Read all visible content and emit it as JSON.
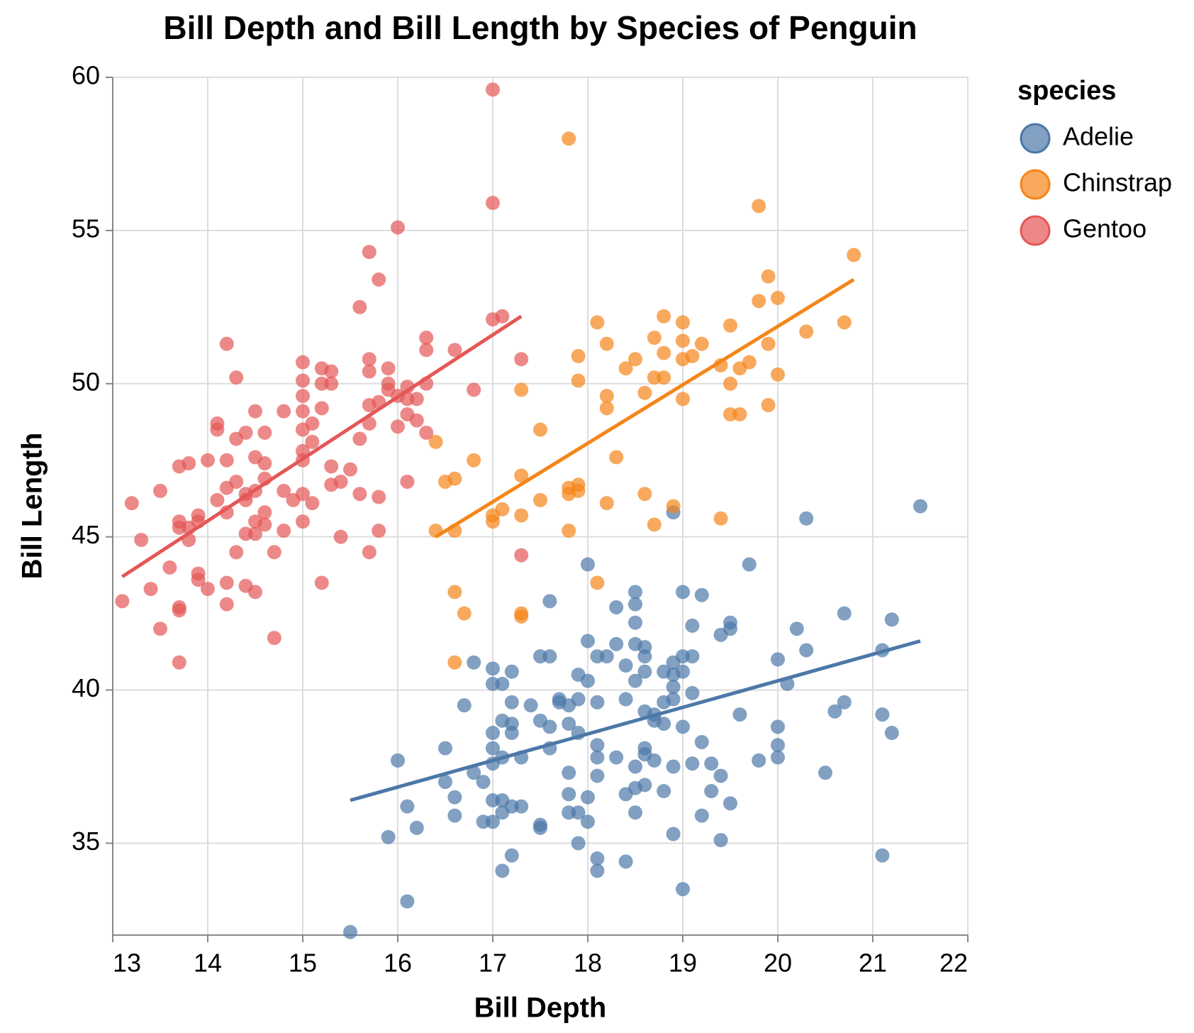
{
  "chart_data": {
    "type": "scatter",
    "title": "Bill Depth and Bill Length by Species of Penguin",
    "x_label": "Bill Depth",
    "y_label": "Bill Length",
    "legend_title": "species",
    "legend_position": "right",
    "grid": true,
    "xlim": [
      13,
      22
    ],
    "ylim": [
      32,
      60
    ],
    "xticks": [
      13,
      14,
      15,
      16,
      17,
      18,
      19,
      20,
      21,
      22
    ],
    "yticks": [
      35,
      40,
      45,
      50,
      55,
      60
    ],
    "series": [
      {
        "name": "Adelie",
        "color": "#4c78a8",
        "x": [
          15.5,
          15.9,
          16.0,
          16.1,
          16.1,
          16.2,
          16.5,
          16.5,
          16.6,
          16.6,
          16.7,
          16.8,
          16.8,
          16.9,
          16.9,
          17.0,
          17.0,
          17.0,
          17.0,
          17.0,
          17.0,
          17.0,
          17.1,
          17.1,
          17.1,
          17.1,
          17.1,
          17.1,
          17.2,
          17.2,
          17.2,
          17.2,
          17.2,
          17.2,
          17.3,
          17.3,
          17.4,
          17.5,
          17.5,
          17.5,
          17.5,
          17.6,
          17.6,
          17.6,
          17.6,
          17.7,
          17.7,
          17.8,
          17.8,
          17.8,
          17.8,
          17.8,
          17.9,
          17.9,
          17.9,
          17.9,
          17.9,
          18.0,
          18.0,
          18.0,
          18.0,
          18.0,
          18.1,
          18.1,
          18.1,
          18.1,
          18.1,
          18.1,
          18.1,
          18.2,
          18.3,
          18.3,
          18.3,
          18.4,
          18.4,
          18.4,
          18.4,
          18.5,
          18.5,
          18.5,
          18.5,
          18.5,
          18.5,
          18.5,
          18.5,
          18.6,
          18.6,
          18.6,
          18.6,
          18.6,
          18.6,
          18.6,
          18.7,
          18.7,
          18.7,
          18.8,
          18.8,
          18.8,
          18.8,
          18.9,
          18.9,
          18.9,
          18.9,
          18.9,
          18.9,
          18.9,
          19.0,
          19.0,
          19.0,
          19.0,
          19.0,
          19.1,
          19.1,
          19.1,
          19.1,
          19.2,
          19.2,
          19.2,
          19.3,
          19.3,
          19.4,
          19.4,
          19.4,
          19.5,
          19.5,
          19.5,
          19.6,
          19.7,
          19.8,
          20.0,
          20.0,
          20.0,
          20.0,
          20.1,
          20.2,
          20.3,
          20.3,
          20.5,
          20.6,
          20.7,
          20.7,
          21.1,
          21.1,
          21.1,
          21.2,
          21.2,
          21.5
        ],
        "y": [
          32.1,
          35.2,
          37.7,
          36.2,
          33.1,
          35.5,
          38.1,
          37.0,
          36.5,
          35.9,
          39.5,
          40.9,
          37.3,
          37.0,
          35.7,
          40.7,
          40.2,
          38.6,
          38.1,
          37.6,
          36.4,
          35.7,
          40.2,
          39.0,
          37.8,
          36.4,
          36.0,
          34.1,
          40.6,
          39.6,
          38.9,
          38.6,
          36.2,
          34.6,
          37.8,
          36.2,
          39.5,
          41.1,
          39.0,
          35.6,
          35.5,
          42.9,
          41.1,
          38.8,
          38.1,
          39.7,
          39.6,
          39.5,
          38.9,
          37.3,
          36.6,
          36.0,
          40.5,
          39.7,
          38.6,
          36.0,
          35.0,
          44.1,
          41.6,
          40.3,
          36.5,
          35.7,
          41.1,
          39.6,
          38.2,
          37.8,
          37.2,
          34.5,
          34.1,
          41.1,
          42.7,
          41.5,
          37.8,
          40.8,
          39.7,
          36.6,
          34.4,
          43.2,
          42.8,
          42.2,
          41.5,
          40.3,
          37.5,
          36.8,
          36.0,
          41.4,
          41.1,
          40.6,
          39.3,
          38.1,
          37.9,
          36.9,
          39.2,
          39.0,
          37.7,
          40.6,
          39.6,
          38.9,
          36.7,
          45.8,
          40.9,
          40.5,
          40.1,
          39.7,
          37.5,
          35.3,
          43.2,
          41.1,
          40.6,
          38.8,
          33.5,
          42.1,
          41.1,
          39.9,
          37.6,
          43.1,
          38.3,
          35.9,
          37.6,
          36.7,
          41.8,
          37.2,
          35.1,
          42.2,
          42.0,
          36.3,
          39.2,
          44.1,
          37.7,
          41.0,
          38.8,
          38.2,
          37.8,
          40.2,
          42.0,
          45.6,
          41.3,
          37.3,
          39.3,
          42.5,
          39.6,
          41.3,
          39.2,
          34.6,
          42.3,
          38.6,
          46.0
        ],
        "trend": {
          "x": [
            15.5,
            21.5
          ],
          "y": [
            36.4,
            41.6
          ]
        }
      },
      {
        "name": "Chinstrap",
        "color": "#f58518",
        "x": [
          16.4,
          16.4,
          16.5,
          16.6,
          16.6,
          16.6,
          16.6,
          16.7,
          16.8,
          17.0,
          17.0,
          17.1,
          17.3,
          17.3,
          17.3,
          17.3,
          17.3,
          17.5,
          17.5,
          17.8,
          17.8,
          17.8,
          17.8,
          17.9,
          17.9,
          17.9,
          17.9,
          18.1,
          18.1,
          18.2,
          18.2,
          18.2,
          18.2,
          18.3,
          18.4,
          18.5,
          18.6,
          18.6,
          18.7,
          18.7,
          18.7,
          18.8,
          18.8,
          18.8,
          18.9,
          19.0,
          19.0,
          19.0,
          19.0,
          19.1,
          19.2,
          19.4,
          19.4,
          19.5,
          19.5,
          19.5,
          19.6,
          19.6,
          19.7,
          19.8,
          19.8,
          19.9,
          19.9,
          19.9,
          20.0,
          20.0,
          20.3,
          20.7,
          20.8
        ],
        "y": [
          48.1,
          45.2,
          46.8,
          46.9,
          45.2,
          43.2,
          40.9,
          42.5,
          47.5,
          45.7,
          45.5,
          45.9,
          49.8,
          47.0,
          45.7,
          42.5,
          42.4,
          48.5,
          46.2,
          58.0,
          46.6,
          46.4,
          45.2,
          50.9,
          50.1,
          46.7,
          46.5,
          52.0,
          43.5,
          51.3,
          49.6,
          49.2,
          46.1,
          47.6,
          50.5,
          50.8,
          49.7,
          46.4,
          51.5,
          50.2,
          45.4,
          52.2,
          51.0,
          50.2,
          46.0,
          52.0,
          51.4,
          50.8,
          49.5,
          50.9,
          51.3,
          45.6,
          50.6,
          51.9,
          50.0,
          49.0,
          49.0,
          50.5,
          50.7,
          55.8,
          52.7,
          53.5,
          51.3,
          49.3,
          52.8,
          50.3,
          51.7,
          52.0,
          54.2
        ],
        "trend": {
          "x": [
            16.4,
            20.8
          ],
          "y": [
            45.0,
            53.4
          ]
        }
      },
      {
        "name": "Gentoo",
        "color": "#e45756",
        "x": [
          13.1,
          13.2,
          13.3,
          13.4,
          13.5,
          13.5,
          13.6,
          13.7,
          13.7,
          13.7,
          13.7,
          13.7,
          13.7,
          13.8,
          13.8,
          13.8,
          13.9,
          13.9,
          13.9,
          13.9,
          14.0,
          14.0,
          14.1,
          14.1,
          14.1,
          14.2,
          14.2,
          14.2,
          14.2,
          14.2,
          14.2,
          14.3,
          14.3,
          14.3,
          14.3,
          14.4,
          14.4,
          14.4,
          14.4,
          14.4,
          14.5,
          14.5,
          14.5,
          14.5,
          14.5,
          14.5,
          14.6,
          14.6,
          14.6,
          14.6,
          14.6,
          14.7,
          14.7,
          14.8,
          14.8,
          14.8,
          14.9,
          15.0,
          15.0,
          15.0,
          15.0,
          15.0,
          15.0,
          15.0,
          15.0,
          15.0,
          15.1,
          15.1,
          15.1,
          15.2,
          15.2,
          15.2,
          15.2,
          15.3,
          15.3,
          15.3,
          15.3,
          15.4,
          15.4,
          15.5,
          15.6,
          15.6,
          15.6,
          15.7,
          15.7,
          15.7,
          15.7,
          15.7,
          15.7,
          15.8,
          15.8,
          15.8,
          15.8,
          15.9,
          15.9,
          15.9,
          16.0,
          16.0,
          16.0,
          16.1,
          16.1,
          16.1,
          16.1,
          16.2,
          16.2,
          16.3,
          16.3,
          16.3,
          16.3,
          16.6,
          16.8,
          17.0,
          17.0,
          17.0,
          17.1,
          17.3,
          17.3
        ],
        "y": [
          42.9,
          46.1,
          44.9,
          43.3,
          46.5,
          42.0,
          44.0,
          47.3,
          45.5,
          45.3,
          42.7,
          42.6,
          40.9,
          47.4,
          44.9,
          45.3,
          45.7,
          45.5,
          43.8,
          43.6,
          47.5,
          43.3,
          48.7,
          48.5,
          46.2,
          51.3,
          47.5,
          46.6,
          45.8,
          43.5,
          42.8,
          50.2,
          48.2,
          46.8,
          44.5,
          48.4,
          46.4,
          46.2,
          45.1,
          43.4,
          49.1,
          47.6,
          46.5,
          45.5,
          45.1,
          43.2,
          48.4,
          47.4,
          46.9,
          45.8,
          45.4,
          44.5,
          41.7,
          49.1,
          46.5,
          45.2,
          46.2,
          50.7,
          50.1,
          49.6,
          49.1,
          48.5,
          47.8,
          47.5,
          46.4,
          45.5,
          48.7,
          48.1,
          46.1,
          50.5,
          50.0,
          49.2,
          43.5,
          50.4,
          50.0,
          47.3,
          46.7,
          46.8,
          45.0,
          47.2,
          52.5,
          48.2,
          46.4,
          54.3,
          50.8,
          50.4,
          49.3,
          48.7,
          44.5,
          53.4,
          49.4,
          46.3,
          45.2,
          50.5,
          50.0,
          49.8,
          55.1,
          49.6,
          48.6,
          49.9,
          49.5,
          49.0,
          46.8,
          49.5,
          48.8,
          51.5,
          51.1,
          50.0,
          48.4,
          51.1,
          49.8,
          59.6,
          55.9,
          52.1,
          52.2,
          50.8,
          44.4
        ],
        "trend": {
          "x": [
            13.1,
            17.3
          ],
          "y": [
            43.7,
            52.2
          ]
        }
      }
    ]
  }
}
